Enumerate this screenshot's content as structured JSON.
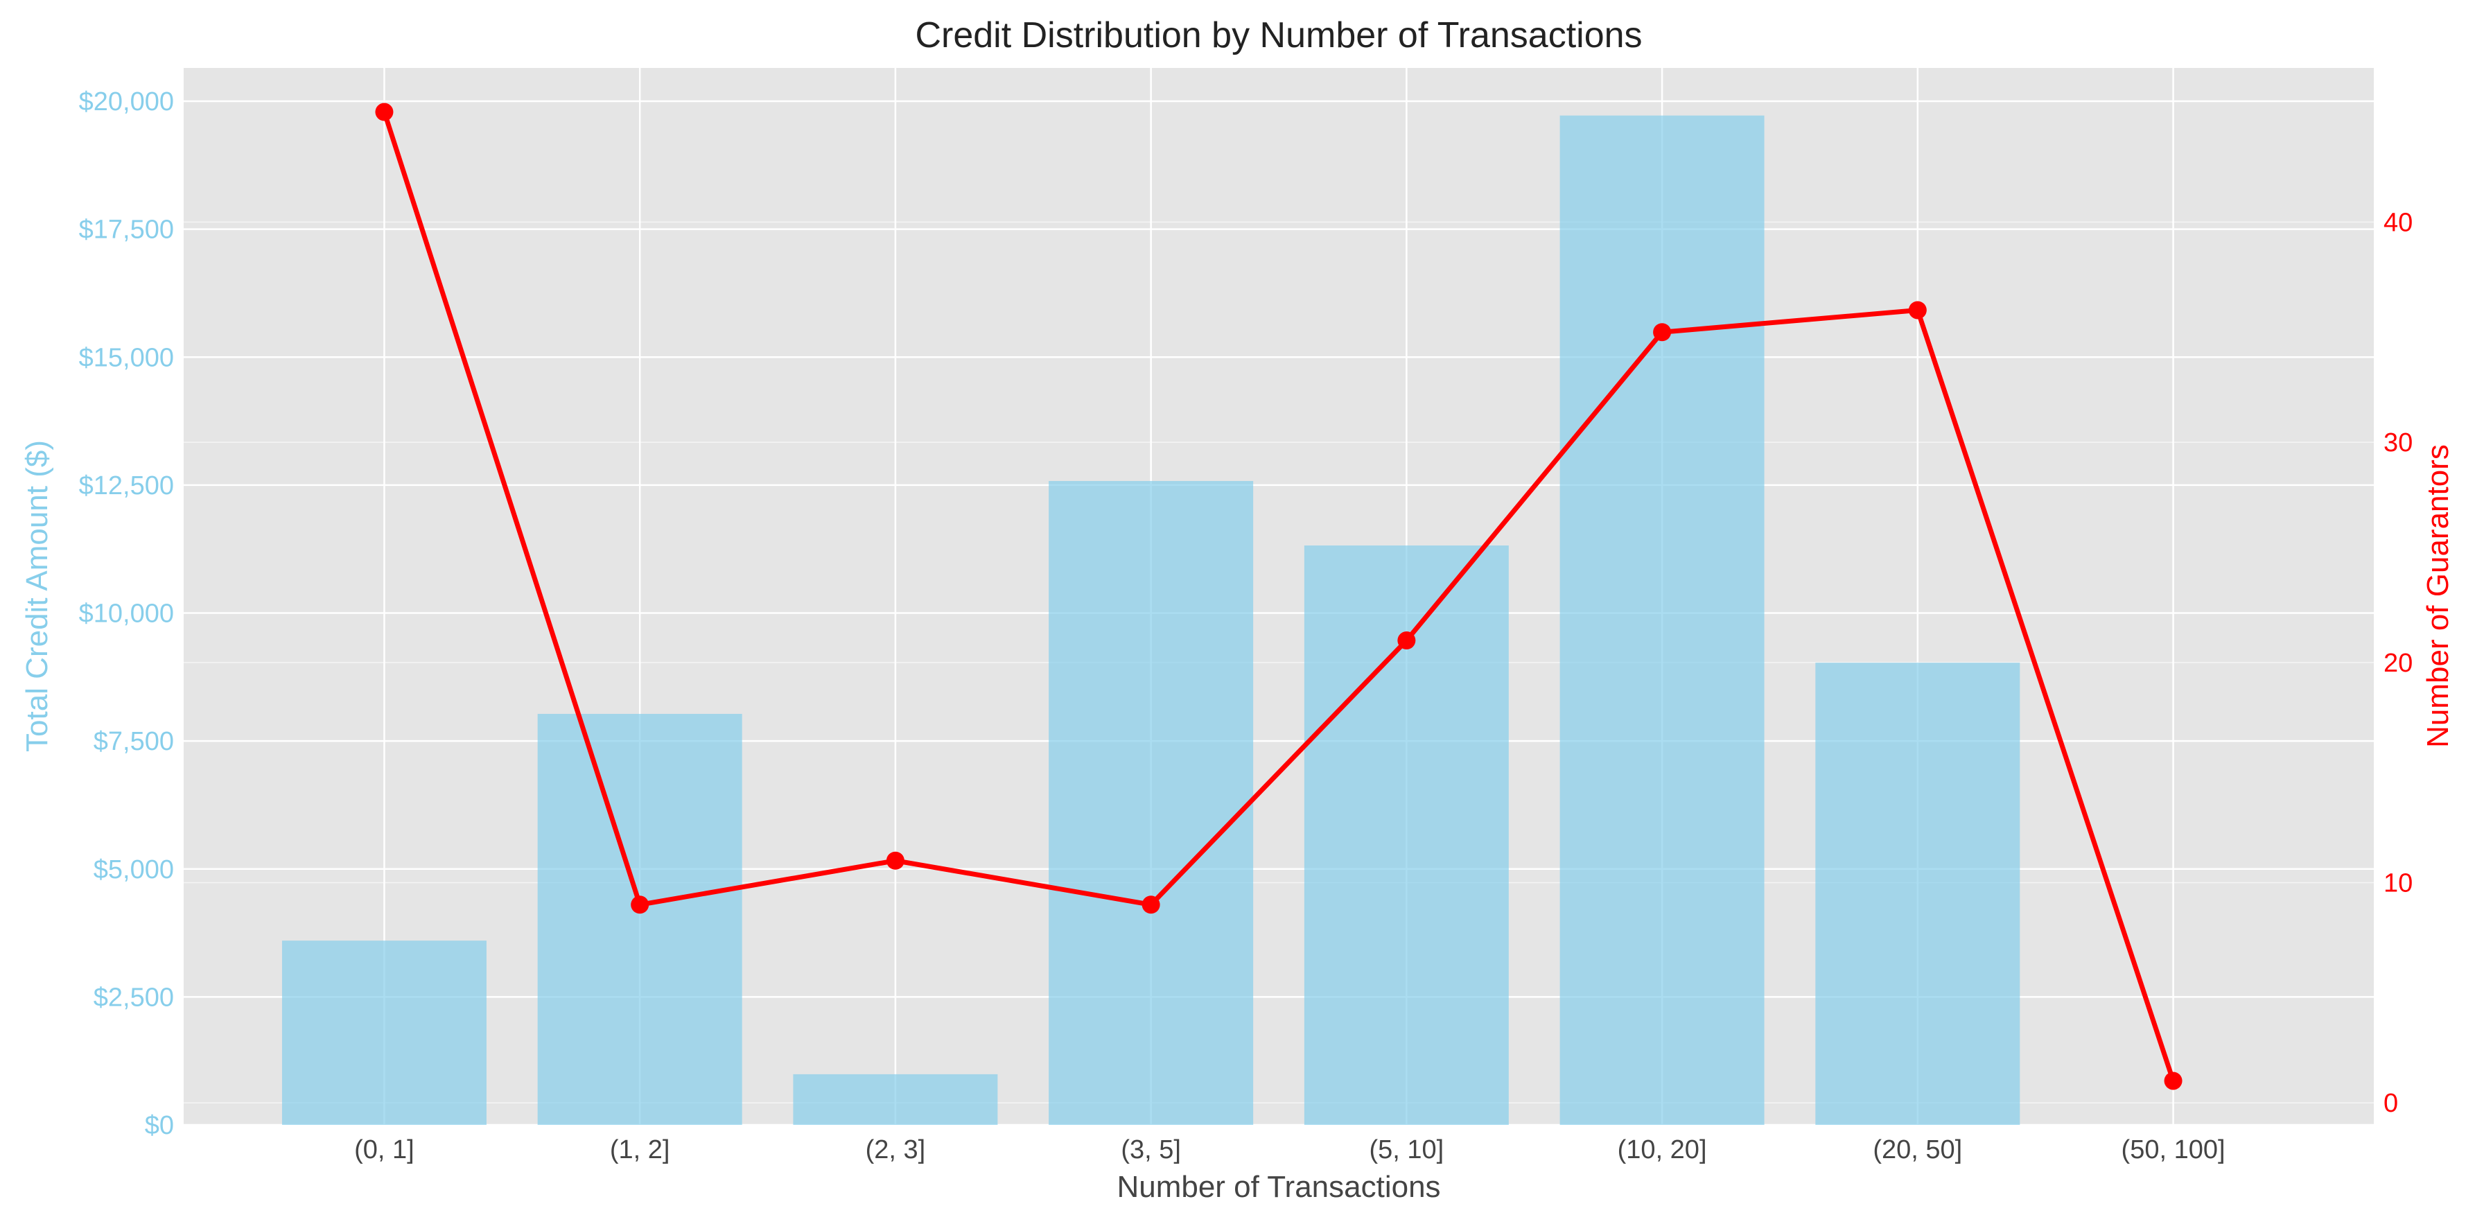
{
  "chart_data": {
    "type": "bar+line",
    "title": "Credit Distribution by Number of Transactions",
    "xlabel": "Number of Transactions",
    "ylabel_left": "Total Credit Amount ($)",
    "ylabel_right": "Number of Guarantors",
    "categories": [
      "(0, 1]",
      "(1, 2]",
      "(2, 3]",
      "(3, 5]",
      "(5, 10]",
      "(10, 20]",
      "(20, 50]",
      "(50, 100]"
    ],
    "bar_series": {
      "values": [
        3600,
        8030,
        990,
        12580,
        11320,
        19720,
        9030,
        null
      ]
    },
    "line_series": {
      "values": [
        45,
        9,
        11,
        9,
        21,
        35,
        36,
        1
      ]
    },
    "ylim_left": [
      0,
      20650
    ],
    "ylim_right": [
      -1,
      47
    ],
    "yticks_left": [
      {
        "v": 0,
        "label": "$0"
      },
      {
        "v": 2500,
        "label": "$2,500"
      },
      {
        "v": 5000,
        "label": "$5,000"
      },
      {
        "v": 7500,
        "label": "$7,500"
      },
      {
        "v": 10000,
        "label": "$10,000"
      },
      {
        "v": 12500,
        "label": "$12,500"
      },
      {
        "v": 15000,
        "label": "$15,000"
      },
      {
        "v": 17500,
        "label": "$17,500"
      },
      {
        "v": 20000,
        "label": "$20,000"
      }
    ],
    "yticks_right": [
      {
        "v": 0,
        "label": "0"
      },
      {
        "v": 10,
        "label": "10"
      },
      {
        "v": 20,
        "label": "20"
      },
      {
        "v": 30,
        "label": "30"
      },
      {
        "v": 40,
        "label": "40"
      }
    ],
    "grid": true,
    "colors": {
      "bar": "#87ceeb",
      "line": "#ff0000",
      "left_axis": "#87ceeb",
      "right_axis": "#ff0000",
      "background": "#e5e5e5",
      "grid": "#ffffff",
      "text": "#444444",
      "title": "#222222"
    }
  }
}
